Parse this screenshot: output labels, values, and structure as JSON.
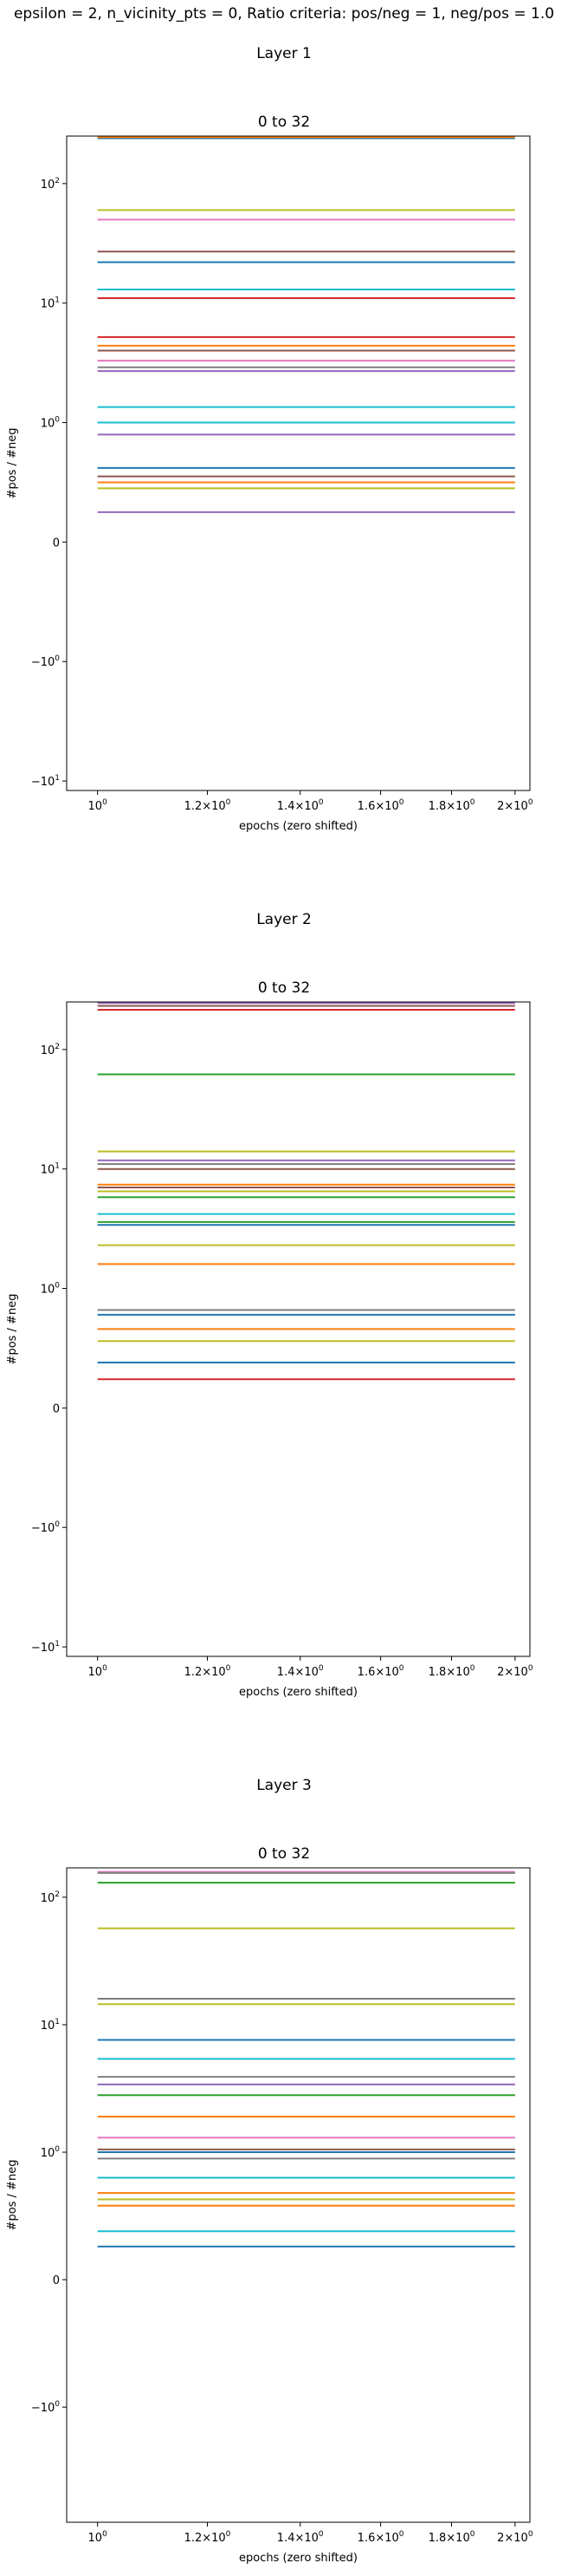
{
  "suptitle": "epsilon = 2, n_vicinity_pts = 0, Ratio criteria: pos/neg = 1, neg/pos = 1.0",
  "chart_data": [
    {
      "type": "line",
      "panel_title": "Layer 1",
      "title": "0 to 32",
      "xlabel": "epochs (zero shifted)",
      "ylabel": "#pos / #neg",
      "xscale": "log",
      "yscale": "symlog",
      "xlim": [
        0.95,
        2.05
      ],
      "ylim": [
        -12,
        250
      ],
      "x": [
        1,
        2
      ],
      "x_ticks": [
        1,
        1.2,
        1.4,
        1.6,
        1.8,
        2
      ],
      "x_ticklabels": [
        "10^0",
        "1.2×10^0",
        "1.4×10^0",
        "1.6×10^0",
        "1.8×10^0",
        "2×10^0"
      ],
      "y_ticks": [
        -10,
        -1,
        0,
        1,
        10,
        100
      ],
      "y_ticklabels": [
        "−10^1",
        "−10^0",
        "0",
        "10^0",
        "10^1",
        "10^2"
      ],
      "grid": false,
      "series": [
        {
          "color": "#1f77b4",
          "values": [
            240,
            240
          ]
        },
        {
          "color": "#ff7f0e",
          "values": [
            245,
            245
          ]
        },
        {
          "color": "#bcbd22",
          "values": [
            60,
            60
          ]
        },
        {
          "color": "#e377c2",
          "values": [
            50,
            50
          ]
        },
        {
          "color": "#8c564b",
          "values": [
            27,
            27
          ]
        },
        {
          "color": "#1f77b4",
          "values": [
            22,
            22
          ]
        },
        {
          "color": "#17becf",
          "values": [
            13,
            13
          ]
        },
        {
          "color": "#d62728",
          "values": [
            11,
            11
          ]
        },
        {
          "color": "#d62728",
          "values": [
            5.2,
            5.2
          ]
        },
        {
          "color": "#ff7f0e",
          "values": [
            4.4,
            4.4
          ]
        },
        {
          "color": "#8c564b",
          "values": [
            4.0,
            4.0
          ]
        },
        {
          "color": "#e377c2",
          "values": [
            3.3,
            3.3
          ]
        },
        {
          "color": "#7f7f7f",
          "values": [
            2.9,
            2.9
          ]
        },
        {
          "color": "#9467bd",
          "values": [
            2.7,
            2.7
          ]
        },
        {
          "color": "#17becf",
          "values": [
            1.35,
            1.35
          ]
        },
        {
          "color": "#17becf",
          "values": [
            1.0,
            1.0
          ]
        },
        {
          "color": "#9467bd",
          "values": [
            0.9,
            0.9
          ]
        },
        {
          "color": "#1f77b4",
          "values": [
            0.62,
            0.62
          ]
        },
        {
          "color": "#8c564b",
          "values": [
            0.55,
            0.55
          ]
        },
        {
          "color": "#ff7f0e",
          "values": [
            0.5,
            0.5
          ]
        },
        {
          "color": "#bcbd22",
          "values": [
            0.45,
            0.45
          ]
        },
        {
          "color": "#9467bd",
          "values": [
            0.25,
            0.25
          ]
        }
      ]
    },
    {
      "type": "line",
      "panel_title": "Layer 2",
      "title": "0 to 32",
      "xlabel": "epochs (zero shifted)",
      "ylabel": "#pos / #neg",
      "xscale": "log",
      "yscale": "symlog",
      "xlim": [
        0.95,
        2.05
      ],
      "ylim": [
        -12,
        250
      ],
      "x": [
        1,
        2
      ],
      "x_ticks": [
        1,
        1.2,
        1.4,
        1.6,
        1.8,
        2
      ],
      "x_ticklabels": [
        "10^0",
        "1.2×10^0",
        "1.4×10^0",
        "1.6×10^0",
        "1.8×10^0",
        "2×10^0"
      ],
      "y_ticks": [
        -10,
        -1,
        0,
        1,
        10,
        100
      ],
      "y_ticklabels": [
        "−10^1",
        "−10^0",
        "0",
        "10^0",
        "10^1",
        "10^2"
      ],
      "grid": false,
      "series": [
        {
          "color": "#9467bd",
          "values": [
            245,
            245
          ]
        },
        {
          "color": "#8c564b",
          "values": [
            232,
            232
          ]
        },
        {
          "color": "#d62728",
          "values": [
            215,
            215
          ]
        },
        {
          "color": "#2ca02c",
          "values": [
            62,
            62
          ]
        },
        {
          "color": "#bcbd22",
          "values": [
            14,
            14
          ]
        },
        {
          "color": "#9467bd",
          "values": [
            11.8,
            11.8
          ]
        },
        {
          "color": "#7f7f7f",
          "values": [
            11,
            11
          ]
        },
        {
          "color": "#8c564b",
          "values": [
            10,
            10
          ]
        },
        {
          "color": "#ff7f0e",
          "values": [
            7.4,
            7.4
          ]
        },
        {
          "color": "#8c564b",
          "values": [
            7.0,
            7.0
          ]
        },
        {
          "color": "#bcbd22",
          "values": [
            6.5,
            6.5
          ]
        },
        {
          "color": "#2ca02c",
          "values": [
            5.8,
            5.8
          ]
        },
        {
          "color": "#17becf",
          "values": [
            4.2,
            4.2
          ]
        },
        {
          "color": "#2ca02c",
          "values": [
            3.6,
            3.6
          ]
        },
        {
          "color": "#1f77b4",
          "values": [
            3.4,
            3.4
          ]
        },
        {
          "color": "#bcbd22",
          "values": [
            2.3,
            2.3
          ]
        },
        {
          "color": "#ff7f0e",
          "values": [
            1.6,
            1.6
          ]
        },
        {
          "color": "#7f7f7f",
          "values": [
            0.82,
            0.82
          ]
        },
        {
          "color": "#1f77b4",
          "values": [
            0.78,
            0.78
          ]
        },
        {
          "color": "#ff7f0e",
          "values": [
            0.66,
            0.66
          ]
        },
        {
          "color": "#bcbd22",
          "values": [
            0.56,
            0.56
          ]
        },
        {
          "color": "#1f77b4",
          "values": [
            0.38,
            0.38
          ]
        },
        {
          "color": "#d62728",
          "values": [
            0.24,
            0.24
          ]
        }
      ]
    },
    {
      "type": "line",
      "panel_title": "Layer 3",
      "title": "0 to 32",
      "xlabel": "epochs (zero shifted)",
      "ylabel": "#pos / #neg",
      "xscale": "log",
      "yscale": "symlog",
      "xlim": [
        0.95,
        2.05
      ],
      "ylim": [
        -8,
        170
      ],
      "x": [
        1,
        2
      ],
      "x_ticks": [
        1,
        1.2,
        1.4,
        1.6,
        1.8,
        2
      ],
      "x_ticklabels": [
        "10^0",
        "1.2×10^0",
        "1.4×10^0",
        "1.6×10^0",
        "1.8×10^0",
        "2×10^0"
      ],
      "y_ticks": [
        -1,
        0,
        1,
        10,
        100
      ],
      "y_ticklabels": [
        "−10^0",
        "0",
        "10^0",
        "10^1",
        "10^2"
      ],
      "grid": false,
      "series": [
        {
          "color": "#e377c2",
          "values": [
            158,
            158
          ]
        },
        {
          "color": "#7f7f7f",
          "values": [
            155,
            155
          ]
        },
        {
          "color": "#2ca02c",
          "values": [
            130,
            130
          ]
        },
        {
          "color": "#bcbd22",
          "values": [
            57,
            57
          ]
        },
        {
          "color": "#7f7f7f",
          "values": [
            16,
            16
          ]
        },
        {
          "color": "#bcbd22",
          "values": [
            14.5,
            14.5
          ]
        },
        {
          "color": "#1f77b4",
          "values": [
            7.6,
            7.6
          ]
        },
        {
          "color": "#17becf",
          "values": [
            5.4,
            5.4
          ]
        },
        {
          "color": "#7f7f7f",
          "values": [
            3.9,
            3.9
          ]
        },
        {
          "color": "#9467bd",
          "values": [
            3.4,
            3.4
          ]
        },
        {
          "color": "#2ca02c",
          "values": [
            2.8,
            2.8
          ]
        },
        {
          "color": "#ff7f0e",
          "values": [
            1.9,
            1.9
          ]
        },
        {
          "color": "#e377c2",
          "values": [
            1.3,
            1.3
          ]
        },
        {
          "color": "#8c564b",
          "values": [
            1.05,
            1.05
          ]
        },
        {
          "color": "#1f77b4",
          "values": [
            1.0,
            1.0
          ]
        },
        {
          "color": "#7f7f7f",
          "values": [
            0.95,
            0.95
          ]
        },
        {
          "color": "#17becf",
          "values": [
            0.8,
            0.8
          ]
        },
        {
          "color": "#ff7f0e",
          "values": [
            0.68,
            0.68
          ]
        },
        {
          "color": "#bcbd22",
          "values": [
            0.63,
            0.63
          ]
        },
        {
          "color": "#ff7f0e",
          "values": [
            0.58,
            0.58
          ]
        },
        {
          "color": "#17becf",
          "values": [
            0.38,
            0.38
          ]
        },
        {
          "color": "#1f77b4",
          "values": [
            0.26,
            0.26
          ]
        }
      ]
    }
  ]
}
